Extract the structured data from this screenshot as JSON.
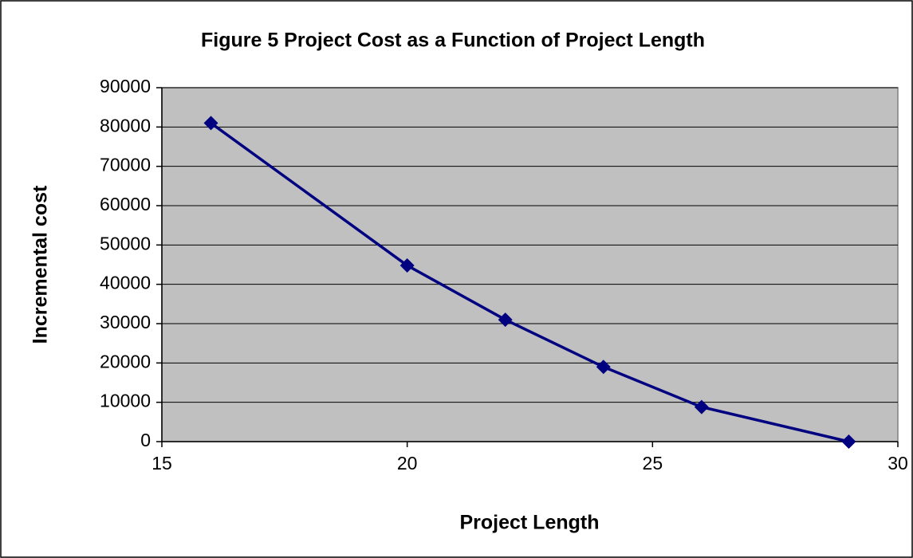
{
  "chart_data": {
    "type": "line",
    "title": "Figure 5 Project Cost as a Function of Project Length",
    "x_label": "Project Length",
    "y_label": "Incremental cost",
    "x": [
      16,
      20,
      22,
      24,
      26,
      29
    ],
    "values": [
      81000,
      44800,
      31000,
      19000,
      8800,
      0
    ],
    "color": "#000080",
    "plot_background": "#c0c0c0",
    "xlim": [
      15,
      30
    ],
    "xticks": [
      15,
      20,
      25,
      30
    ],
    "ylim": [
      0,
      90000
    ],
    "yticks": [
      0,
      10000,
      20000,
      30000,
      40000,
      50000,
      60000,
      70000,
      80000,
      90000
    ],
    "grid": true
  }
}
